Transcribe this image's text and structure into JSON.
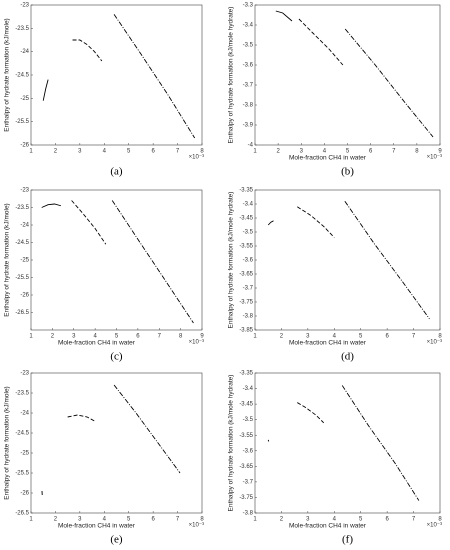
{
  "chart_data": [
    {
      "type": "line",
      "panel_label": "(a)",
      "ylabel": "Enthalpy of hydrate formation (kJ/mole)",
      "x_multiplier": "×10⁻³",
      "xlim": [
        1,
        8
      ],
      "xticks": [
        1,
        2,
        3,
        4,
        5,
        6,
        7,
        8
      ],
      "ylim": [
        -26,
        -23
      ],
      "yticks": [
        -23,
        -23.5,
        -24,
        -24.5,
        -25,
        -25.5,
        -26
      ],
      "series": [
        {
          "style": "solid",
          "color": "#000000",
          "x": [
            1.5,
            1.6,
            1.7
          ],
          "values": [
            -25.05,
            -24.8,
            -24.6
          ]
        },
        {
          "style": "dashed",
          "color": "#000000",
          "x": [
            2.7,
            3.0,
            3.3,
            3.6,
            3.9
          ],
          "values": [
            -23.75,
            -23.75,
            -23.85,
            -24.0,
            -24.2
          ]
        },
        {
          "style": "dashdot",
          "color": "#000000",
          "x": [
            4.4,
            5.5,
            6.6,
            7.7
          ],
          "values": [
            -23.2,
            -24.05,
            -24.92,
            -25.85
          ]
        }
      ]
    },
    {
      "type": "line",
      "panel_label": "(b)",
      "xlabel": "Mole-fraction CH4 in water",
      "ylabel": "Enthalpy of hydrate formation (kJ/mole hydrate)",
      "x_multiplier": "×10⁻³",
      "xlim": [
        1,
        9
      ],
      "xticks": [
        1,
        2,
        3,
        4,
        5,
        6,
        7,
        8,
        9
      ],
      "ylim": [
        -4,
        -3.3
      ],
      "yticks": [
        -3.3,
        -3.4,
        -3.5,
        -3.6,
        -3.7,
        -3.8,
        -3.9,
        -4
      ],
      "series": [
        {
          "style": "solid",
          "color": "#000000",
          "x": [
            1.9,
            2.2,
            2.6
          ],
          "values": [
            -3.33,
            -3.34,
            -3.38
          ]
        },
        {
          "style": "dashed",
          "color": "#000000",
          "x": [
            2.9,
            3.5,
            4.2,
            4.8
          ],
          "values": [
            -3.37,
            -3.44,
            -3.52,
            -3.6
          ]
        },
        {
          "style": "dashdot",
          "color": "#000000",
          "x": [
            4.9,
            6.2,
            7.5,
            8.7
          ],
          "values": [
            -3.42,
            -3.6,
            -3.79,
            -3.96
          ]
        }
      ]
    },
    {
      "type": "line",
      "panel_label": "(c)",
      "xlabel": "Mole-fraction CH4 in water",
      "ylabel": "Enthalpy of hydrate formation (kJ/mole)",
      "x_multiplier": "×10⁻³",
      "xlim": [
        1,
        9
      ],
      "xticks": [
        1,
        2,
        3,
        4,
        5,
        6,
        7,
        8,
        9
      ],
      "ylim": [
        -27,
        -23
      ],
      "yticks": [
        -23,
        -23.5,
        -24,
        -24.5,
        -25,
        -25.5,
        -26,
        -26.5
      ],
      "series": [
        {
          "style": "solid",
          "color": "#000000",
          "x": [
            1.5,
            1.8,
            2.1,
            2.4
          ],
          "values": [
            -23.5,
            -23.42,
            -23.4,
            -23.45
          ]
        },
        {
          "style": "dashed",
          "color": "#000000",
          "x": [
            2.9,
            3.4,
            4.0,
            4.5
          ],
          "values": [
            -23.3,
            -23.65,
            -24.1,
            -24.55
          ]
        },
        {
          "style": "dashdot",
          "color": "#000000",
          "x": [
            4.8,
            6.1,
            7.3,
            8.6
          ],
          "values": [
            -23.3,
            -24.5,
            -25.6,
            -26.8
          ]
        }
      ]
    },
    {
      "type": "line",
      "panel_label": "(d)",
      "xlabel": "Mole-fraction CH4 in water",
      "ylabel": "Enthalpy of hydrate formation (kJ/mole hydrate)",
      "x_multiplier": "×10⁻³",
      "xlim": [
        1,
        8
      ],
      "xticks": [
        1,
        2,
        3,
        4,
        5,
        6,
        7,
        8
      ],
      "ylim": [
        -3.85,
        -3.35
      ],
      "yticks": [
        -3.35,
        -3.4,
        -3.45,
        -3.5,
        -3.55,
        -3.6,
        -3.65,
        -3.7,
        -3.75,
        -3.8,
        -3.85
      ],
      "series": [
        {
          "style": "solid",
          "color": "#000000",
          "x": [
            1.5,
            1.6,
            1.7
          ],
          "values": [
            -3.475,
            -3.465,
            -3.46
          ]
        },
        {
          "style": "dashed",
          "color": "#000000",
          "x": [
            2.6,
            3.1,
            3.6,
            4.0
          ],
          "values": [
            -3.41,
            -3.44,
            -3.48,
            -3.52
          ]
        },
        {
          "style": "dashdot",
          "color": "#000000",
          "x": [
            4.4,
            5.5,
            6.6,
            7.6
          ],
          "values": [
            -3.39,
            -3.54,
            -3.68,
            -3.81
          ]
        }
      ]
    },
    {
      "type": "line",
      "panel_label": "(e)",
      "xlabel": "Mole-fraction CH4 in water",
      "ylabel": "Enthalpy of hydrate formation (kJ/mole)",
      "x_multiplier": "×10⁻³",
      "xlim": [
        1,
        8
      ],
      "xticks": [
        1,
        2,
        3,
        4,
        5,
        6,
        7,
        8
      ],
      "ylim": [
        -26.5,
        -23
      ],
      "yticks": [
        -23,
        -23.5,
        -24,
        -24.5,
        -25,
        -25.5,
        -26,
        -26.5
      ],
      "series": [
        {
          "style": "solid",
          "color": "#000000",
          "x": [
            1.45,
            1.46
          ],
          "values": [
            -25.95,
            -26.05
          ]
        },
        {
          "style": "dashed",
          "color": "#000000",
          "x": [
            2.5,
            2.9,
            3.3,
            3.6
          ],
          "values": [
            -24.1,
            -24.05,
            -24.1,
            -24.2
          ]
        },
        {
          "style": "dashdot",
          "color": "#000000",
          "x": [
            4.4,
            5.3,
            6.2,
            7.1
          ],
          "values": [
            -23.3,
            -24.0,
            -24.75,
            -25.5
          ]
        }
      ]
    },
    {
      "type": "line",
      "panel_label": "(f)",
      "xlabel": "Mole-fraction CH4 in water",
      "ylabel": "Enthalpy of hydrate formation (kJ/mole hydrate)",
      "x_multiplier": "×10⁻³",
      "xlim": [
        1,
        8
      ],
      "xticks": [
        1,
        2,
        3,
        4,
        5,
        6,
        7,
        8
      ],
      "ylim": [
        -3.8,
        -3.35
      ],
      "yticks": [
        -3.35,
        -3.4,
        -3.45,
        -3.5,
        -3.55,
        -3.6,
        -3.65,
        -3.7,
        -3.75,
        -3.8
      ],
      "series": [
        {
          "style": "solid",
          "color": "#000000",
          "x": [
            1.5,
            1.52
          ],
          "values": [
            -3.565,
            -3.57
          ]
        },
        {
          "style": "dashed",
          "color": "#000000",
          "x": [
            2.6,
            2.9,
            3.3,
            3.6
          ],
          "values": [
            -3.445,
            -3.46,
            -3.485,
            -3.51
          ]
        },
        {
          "style": "dashdot",
          "color": "#000000",
          "x": [
            4.3,
            5.3,
            6.3,
            7.2
          ],
          "values": [
            -3.39,
            -3.52,
            -3.64,
            -3.76
          ]
        }
      ]
    }
  ]
}
